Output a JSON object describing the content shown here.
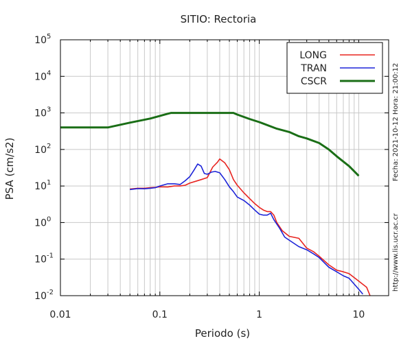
{
  "chart_data": {
    "type": "line",
    "title": "SITIO: Rectoria",
    "xlabel": "Periodo (s)",
    "ylabel": "PSA (cm/s2)",
    "xscale": "log",
    "yscale": "log",
    "xlim": [
      0.01,
      20
    ],
    "ylim": [
      0.01,
      100000
    ],
    "x_ticks": [
      {
        "value": 0.01,
        "label": "0.01"
      },
      {
        "value": 0.1,
        "label": "0.1"
      },
      {
        "value": 1,
        "label": "1"
      },
      {
        "value": 10,
        "label": "10"
      }
    ],
    "y_ticks": [
      {
        "value": 0.01,
        "base": "10",
        "exp": "-2"
      },
      {
        "value": 0.1,
        "base": "10",
        "exp": "-1"
      },
      {
        "value": 1,
        "base": "10",
        "exp": "0"
      },
      {
        "value": 10,
        "base": "10",
        "exp": "1"
      },
      {
        "value": 100,
        "base": "10",
        "exp": "2"
      },
      {
        "value": 1000,
        "base": "10",
        "exp": "3"
      },
      {
        "value": 10000,
        "base": "10",
        "exp": "4"
      },
      {
        "value": 100000,
        "base": "10",
        "exp": "5"
      }
    ],
    "grid": true,
    "legend_position": "top-right",
    "series": [
      {
        "name": "LONG",
        "color": "#e8231f",
        "points": [
          [
            0.05,
            8.3
          ],
          [
            0.06,
            8.7
          ],
          [
            0.07,
            8.7
          ],
          [
            0.08,
            9.0
          ],
          [
            0.09,
            9.2
          ],
          [
            0.1,
            9.5
          ],
          [
            0.12,
            9.4
          ],
          [
            0.14,
            10.0
          ],
          [
            0.16,
            10.0
          ],
          [
            0.18,
            10.5
          ],
          [
            0.2,
            12.0
          ],
          [
            0.23,
            13.5
          ],
          [
            0.26,
            15.0
          ],
          [
            0.3,
            17.0
          ],
          [
            0.34,
            33.0
          ],
          [
            0.38,
            45.0
          ],
          [
            0.4,
            55.0
          ],
          [
            0.45,
            43.0
          ],
          [
            0.5,
            28.0
          ],
          [
            0.55,
            15.0
          ],
          [
            0.6,
            10.5
          ],
          [
            0.7,
            6.5
          ],
          [
            0.8,
            4.5
          ],
          [
            0.9,
            3.3
          ],
          [
            1.0,
            2.6
          ],
          [
            1.1,
            2.2
          ],
          [
            1.2,
            2.0
          ],
          [
            1.3,
            2.0
          ],
          [
            1.4,
            1.6
          ],
          [
            1.5,
            1.0
          ],
          [
            1.7,
            0.6
          ],
          [
            2.0,
            0.42
          ],
          [
            2.5,
            0.37
          ],
          [
            3.0,
            0.2
          ],
          [
            3.5,
            0.16
          ],
          [
            4.0,
            0.12
          ],
          [
            5.0,
            0.07
          ],
          [
            6.0,
            0.05
          ],
          [
            7.0,
            0.045
          ],
          [
            8.0,
            0.04
          ],
          [
            10.0,
            0.025
          ],
          [
            12.0,
            0.017
          ],
          [
            13.0,
            0.01
          ]
        ]
      },
      {
        "name": "TRAN",
        "color": "#1c23d8",
        "points": [
          [
            0.05,
            8.0
          ],
          [
            0.06,
            8.5
          ],
          [
            0.07,
            8.4
          ],
          [
            0.08,
            8.7
          ],
          [
            0.09,
            9.0
          ],
          [
            0.1,
            10.0
          ],
          [
            0.12,
            11.5
          ],
          [
            0.14,
            11.5
          ],
          [
            0.16,
            11.0
          ],
          [
            0.18,
            14.0
          ],
          [
            0.2,
            18.0
          ],
          [
            0.22,
            27.0
          ],
          [
            0.24,
            40.0
          ],
          [
            0.26,
            35.0
          ],
          [
            0.28,
            22.0
          ],
          [
            0.3,
            21.0
          ],
          [
            0.33,
            24.0
          ],
          [
            0.36,
            25.0
          ],
          [
            0.4,
            23.0
          ],
          [
            0.45,
            15.0
          ],
          [
            0.5,
            9.5
          ],
          [
            0.55,
            7.0
          ],
          [
            0.6,
            5.0
          ],
          [
            0.7,
            4.0
          ],
          [
            0.8,
            3.0
          ],
          [
            0.9,
            2.2
          ],
          [
            1.0,
            1.7
          ],
          [
            1.1,
            1.6
          ],
          [
            1.2,
            1.6
          ],
          [
            1.3,
            1.8
          ],
          [
            1.4,
            1.2
          ],
          [
            1.6,
            0.7
          ],
          [
            1.8,
            0.4
          ],
          [
            2.0,
            0.33
          ],
          [
            2.5,
            0.22
          ],
          [
            3.0,
            0.18
          ],
          [
            3.5,
            0.14
          ],
          [
            4.0,
            0.11
          ],
          [
            5.0,
            0.06
          ],
          [
            6.0,
            0.045
          ],
          [
            7.0,
            0.035
          ],
          [
            8.0,
            0.03
          ],
          [
            10.0,
            0.015
          ],
          [
            11.0,
            0.011
          ]
        ]
      },
      {
        "name": "CSCR",
        "color": "#1a6e16",
        "points": [
          [
            0.01,
            400
          ],
          [
            0.03,
            400
          ],
          [
            0.05,
            540
          ],
          [
            0.08,
            700
          ],
          [
            0.12,
            950
          ],
          [
            0.13,
            1000
          ],
          [
            0.55,
            1000
          ],
          [
            0.6,
            900
          ],
          [
            0.8,
            680
          ],
          [
            1.0,
            560
          ],
          [
            1.5,
            370
          ],
          [
            2.0,
            300
          ],
          [
            2.5,
            230
          ],
          [
            3.0,
            200
          ],
          [
            4.0,
            150
          ],
          [
            5.0,
            100
          ],
          [
            6.0,
            65
          ],
          [
            8.0,
            35
          ],
          [
            10.0,
            19
          ]
        ]
      }
    ],
    "side_texts": {
      "timestamp": "Fecha: 2021-10-12 Hora: 21:00:12",
      "website": "http://www.lis.ucr.ac.cr"
    }
  }
}
